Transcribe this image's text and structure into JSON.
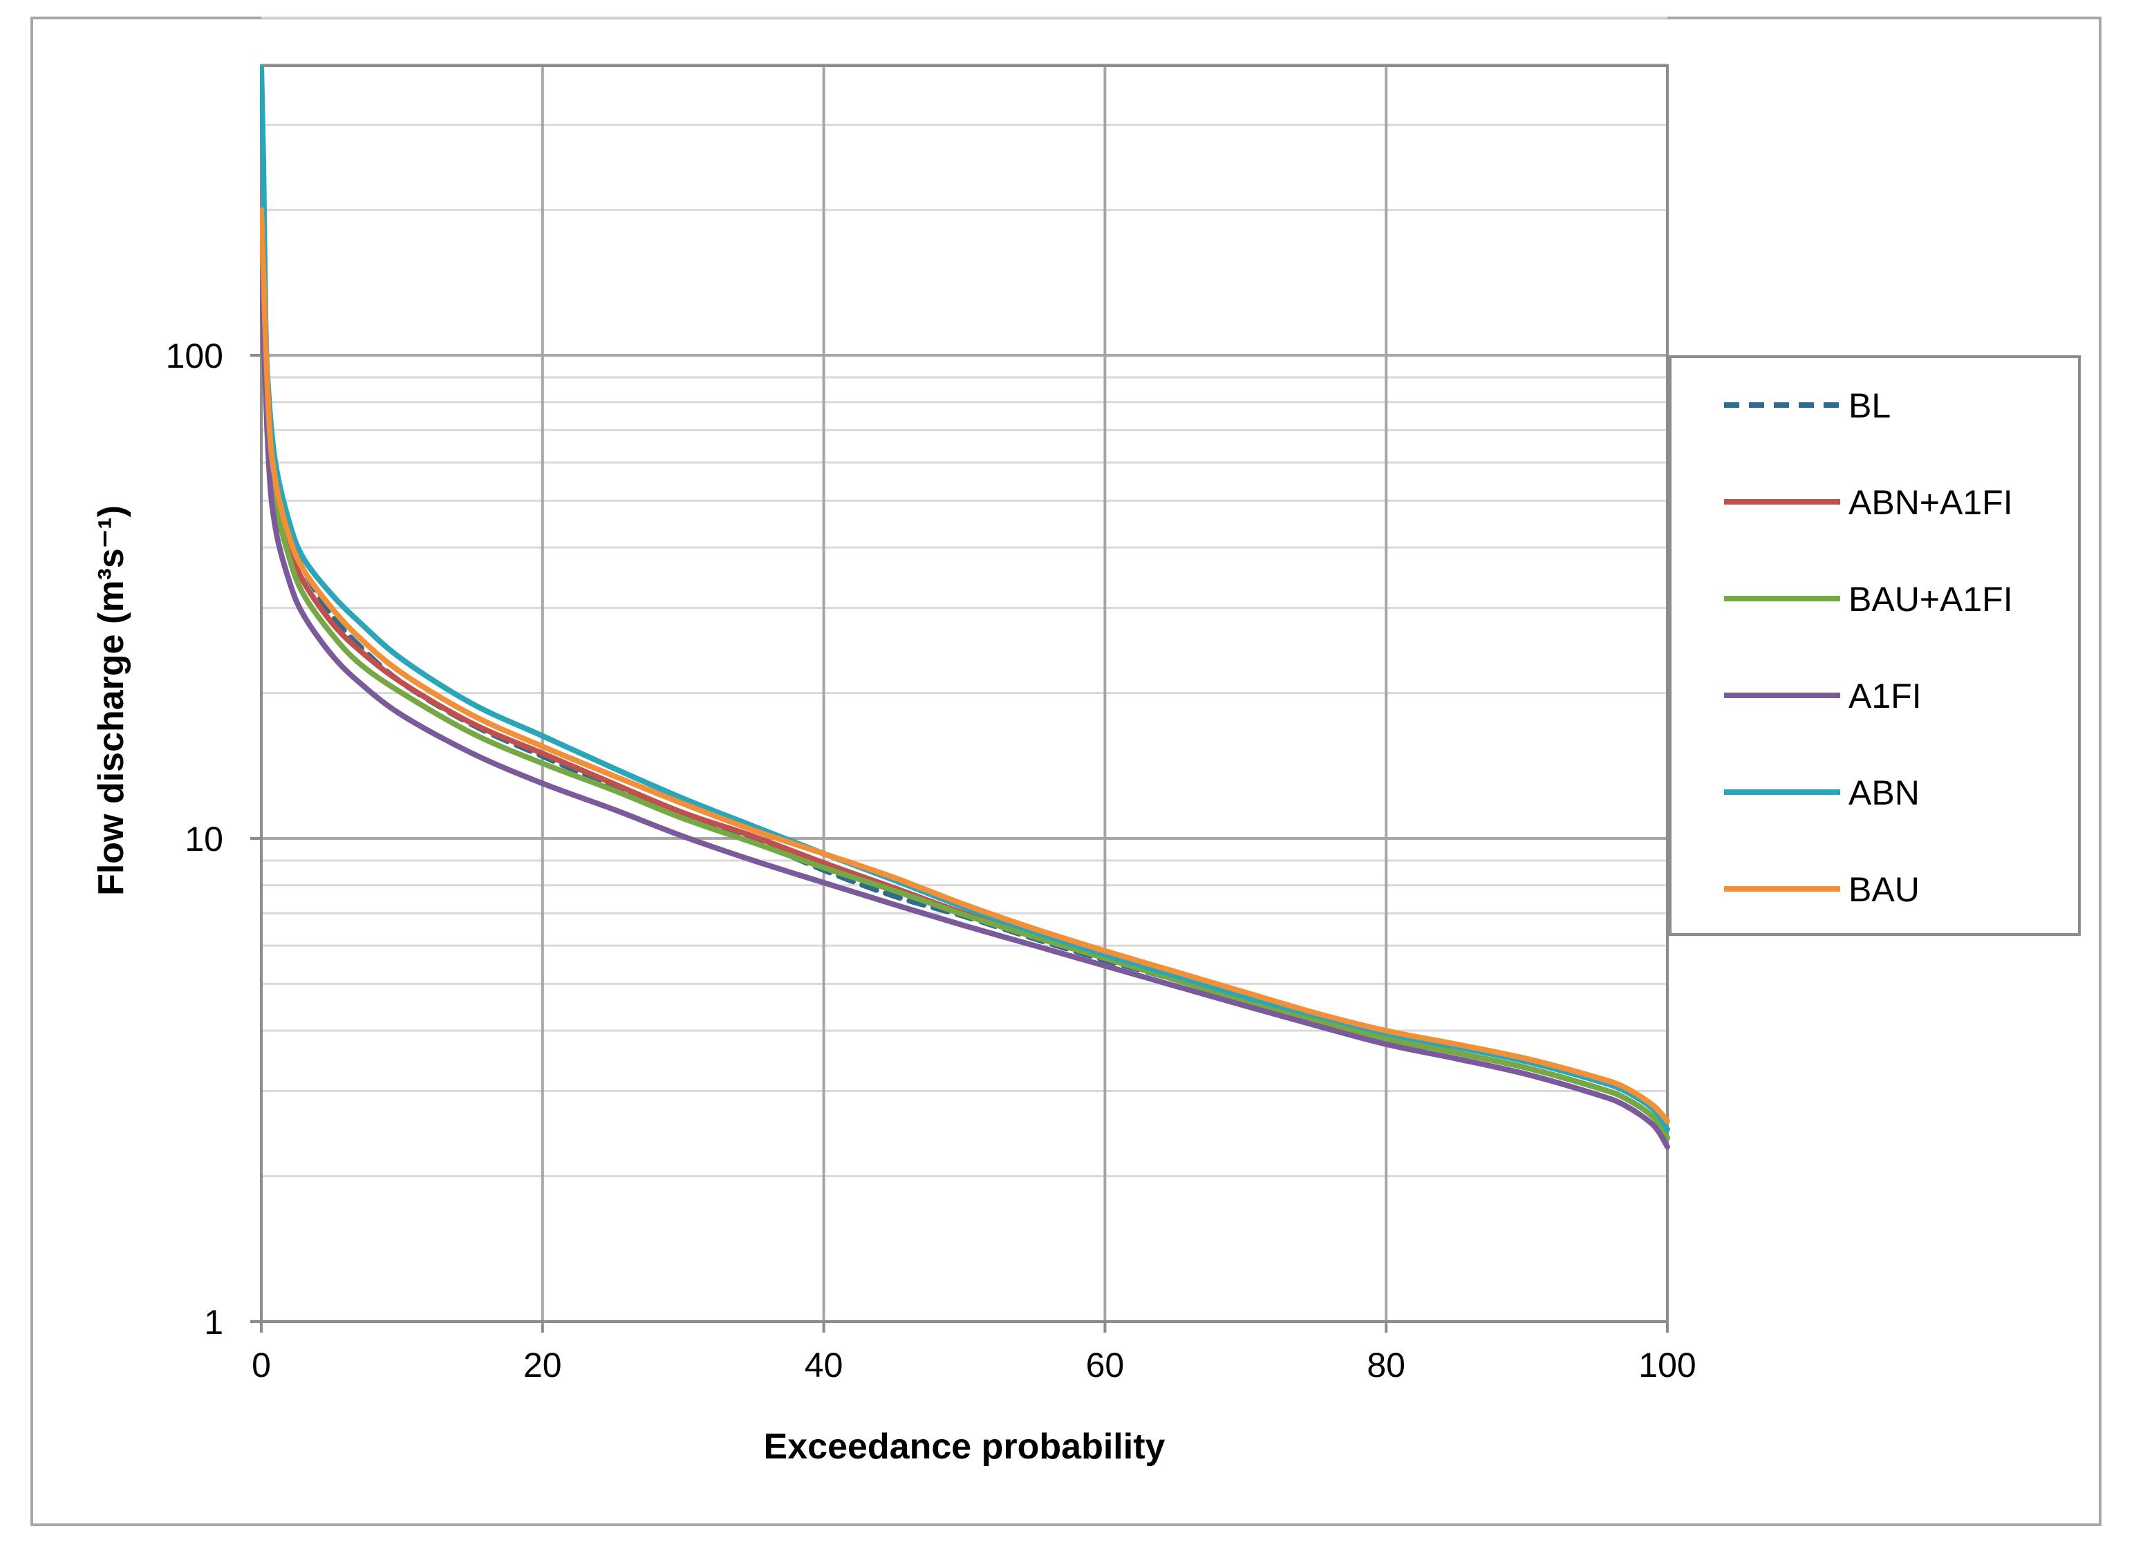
{
  "chart_data": {
    "type": "line",
    "title": "",
    "xlabel": "Exceedance probability",
    "ylabel": "Flow discharge (m³s⁻¹)",
    "xlim": [
      0,
      100
    ],
    "ylim": [
      1,
      500
    ],
    "yscale": "log",
    "grid": true,
    "legend_position": "right",
    "x_ticks": [
      "0",
      "20",
      "40",
      "60",
      "80",
      "100"
    ],
    "y_ticks": [
      "1",
      "10",
      "100"
    ],
    "series": [
      {
        "name": "BL",
        "color": "#2f6a8f",
        "dash": "dashed",
        "x": [
          0,
          0.5,
          1,
          2,
          3,
          5,
          7,
          10,
          15,
          20,
          25,
          30,
          35,
          40,
          45,
          50,
          55,
          60,
          65,
          70,
          75,
          80,
          85,
          90,
          95,
          97,
          99,
          100
        ],
        "y": [
          200,
          80,
          55,
          42,
          36,
          29,
          25,
          21,
          17.2,
          14.8,
          12.8,
          11.0,
          9.9,
          8.6,
          7.6,
          6.9,
          6.2,
          5.6,
          5.1,
          4.6,
          4.2,
          3.85,
          3.6,
          3.35,
          3.05,
          2.9,
          2.65,
          2.4
        ]
      },
      {
        "name": "ABN+A1FI",
        "color": "#c0504d",
        "dash": "solid",
        "x": [
          0,
          0.5,
          1,
          2,
          3,
          5,
          7,
          10,
          15,
          20,
          25,
          30,
          35,
          40,
          45,
          50,
          55,
          60,
          65,
          70,
          75,
          80,
          85,
          90,
          95,
          97,
          99,
          100
        ],
        "y": [
          180,
          75,
          52,
          40,
          34,
          28,
          24.5,
          21,
          17.3,
          15.0,
          13.0,
          11.3,
          10.1,
          8.9,
          7.9,
          7.0,
          6.3,
          5.7,
          5.15,
          4.65,
          4.25,
          3.9,
          3.6,
          3.35,
          3.05,
          2.9,
          2.65,
          2.4
        ]
      },
      {
        "name": "BAU+A1FI",
        "color": "#77a846",
        "dash": "solid",
        "x": [
          0,
          0.5,
          1,
          2,
          3,
          5,
          7,
          10,
          15,
          20,
          25,
          30,
          35,
          40,
          45,
          50,
          55,
          60,
          65,
          70,
          75,
          80,
          85,
          90,
          95,
          97,
          99,
          100
        ],
        "y": [
          170,
          72,
          50,
          38,
          32,
          26.5,
          23,
          20,
          16.5,
          14.3,
          12.6,
          11.0,
          9.8,
          8.7,
          7.8,
          6.95,
          6.25,
          5.65,
          5.1,
          4.6,
          4.2,
          3.85,
          3.6,
          3.35,
          3.05,
          2.9,
          2.65,
          2.4
        ]
      },
      {
        "name": "A1FI",
        "color": "#7a5a9a",
        "dash": "solid",
        "x": [
          0,
          0.5,
          1,
          2,
          3,
          5,
          7,
          10,
          15,
          20,
          25,
          30,
          35,
          40,
          45,
          50,
          55,
          60,
          65,
          70,
          75,
          80,
          85,
          90,
          95,
          97,
          99,
          100
        ],
        "y": [
          150,
          62,
          44,
          34,
          29,
          24,
          21,
          18,
          15,
          13,
          11.5,
          10.1,
          9.0,
          8.1,
          7.3,
          6.6,
          6.0,
          5.45,
          4.95,
          4.5,
          4.1,
          3.75,
          3.5,
          3.25,
          2.95,
          2.8,
          2.55,
          2.3
        ]
      },
      {
        "name": "ABN",
        "color": "#2aa6b8",
        "dash": "solid",
        "x": [
          0,
          0.15,
          0.3,
          0.5,
          1,
          2,
          3,
          5,
          7,
          10,
          15,
          20,
          25,
          30,
          35,
          40,
          45,
          50,
          55,
          60,
          65,
          70,
          75,
          80,
          85,
          90,
          95,
          97,
          99,
          100
        ],
        "y": [
          400,
          250,
          120,
          85,
          60,
          45,
          38,
          32,
          28,
          23.5,
          19,
          16.3,
          14.0,
          12.1,
          10.6,
          9.3,
          8.2,
          7.2,
          6.4,
          5.75,
          5.2,
          4.7,
          4.3,
          3.95,
          3.7,
          3.45,
          3.15,
          3.0,
          2.75,
          2.5
        ]
      },
      {
        "name": "BAU",
        "color": "#f2903a",
        "dash": "solid",
        "x": [
          0,
          0.5,
          1,
          2,
          3,
          5,
          7,
          10,
          15,
          20,
          25,
          30,
          35,
          40,
          45,
          50,
          55,
          60,
          65,
          70,
          75,
          80,
          85,
          90,
          95,
          97,
          99,
          100
        ],
        "y": [
          200,
          78,
          55,
          42,
          36,
          30,
          26,
          22,
          18,
          15.5,
          13.5,
          11.8,
          10.4,
          9.3,
          8.3,
          7.3,
          6.5,
          5.85,
          5.3,
          4.8,
          4.35,
          4.0,
          3.75,
          3.5,
          3.2,
          3.05,
          2.8,
          2.6
        ]
      }
    ]
  }
}
